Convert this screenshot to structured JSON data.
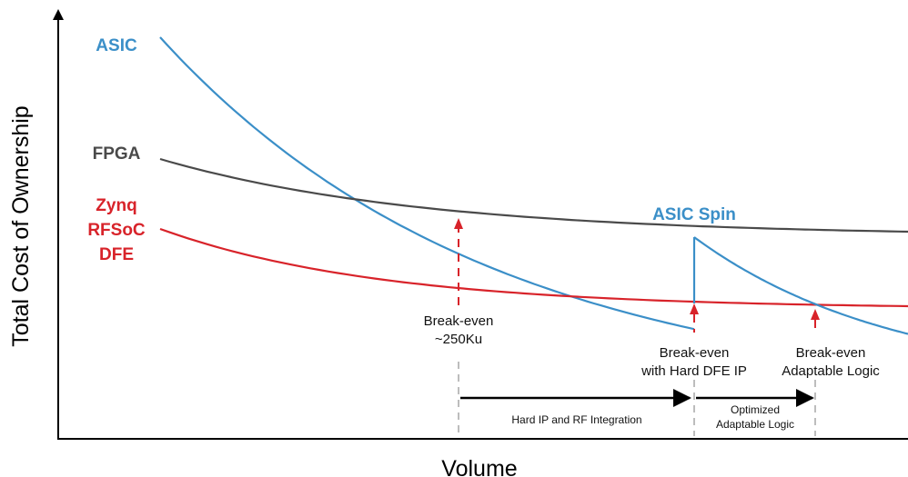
{
  "chart_data": {
    "type": "line",
    "xlabel": "Volume",
    "ylabel": "Total Cost of Ownership",
    "colors": {
      "asic": "#3b8fc8",
      "fpga": "#4a4a4a",
      "rfsoc": "#d8232a",
      "arrow": "#000000",
      "guide": "#bdbdbd"
    },
    "series": [
      {
        "key": "asic",
        "name": "ASIC",
        "color": "#3b8fc8"
      },
      {
        "key": "fpga",
        "name": "FPGA",
        "color": "#4a4a4a"
      },
      {
        "key": "rfsoc",
        "name": "Zynq RFSoC DFE",
        "name_lines": [
          "Zynq",
          "RFSoC",
          "DFE"
        ],
        "color": "#d8232a"
      },
      {
        "key": "asic_spin",
        "name": "ASIC Spin",
        "color": "#3b8fc8"
      }
    ],
    "annotations": {
      "breakeven_1": {
        "lines": [
          "Break-even",
          "~250Ku"
        ]
      },
      "breakeven_2": {
        "lines": [
          "Break-even",
          "with Hard DFE IP"
        ]
      },
      "breakeven_3": {
        "lines": [
          "Break-even",
          "Adaptable Logic"
        ]
      },
      "span_1": {
        "lines": [
          "Hard IP and RF Integration"
        ]
      },
      "span_2": {
        "lines": [
          "Optimized",
          "Adaptable Logic"
        ]
      }
    }
  }
}
